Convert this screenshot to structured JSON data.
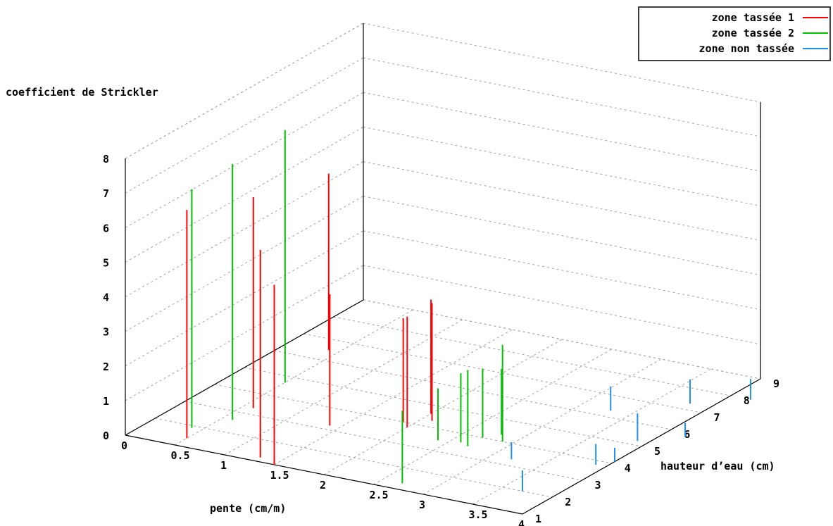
{
  "chart_data": {
    "type": "3d-impulse",
    "title": "",
    "xlabel": "pente (cm/m)",
    "ylabel": "hauteur d’eau (cm)",
    "zlabel": "coefficient de Strickler",
    "xlim": [
      0,
      4
    ],
    "ylim": [
      1,
      9
    ],
    "zlim": [
      0,
      8
    ],
    "x_ticks": [
      "0",
      "0.5",
      "1",
      "1.5",
      "2",
      "2.5",
      "3",
      "3.5",
      "4"
    ],
    "y_ticks": [
      "1",
      "2",
      "3",
      "4",
      "5",
      "6",
      "7",
      "8",
      "9"
    ],
    "z_ticks": [
      "0",
      "1",
      "2",
      "3",
      "4",
      "5",
      "6",
      "7",
      "8"
    ],
    "grid": true,
    "legend_position": "top-right",
    "series": [
      {
        "name": "zone tassée 1",
        "color": "#ff0000",
        "points": [
          {
            "x": 0.5,
            "y": 1.4,
            "z": 6.6
          },
          {
            "x": 0.6,
            "y": 3.3,
            "z": 6.1
          },
          {
            "x": 1.3,
            "y": 1.2,
            "z": 6.0
          },
          {
            "x": 0.4,
            "y": 6.5,
            "z": 5.1
          },
          {
            "x": 1.4,
            "y": 3.2,
            "z": 3.8
          },
          {
            "x": 1.5,
            "y": 1.0,
            "z": 5.2
          },
          {
            "x": 1.9,
            "y": 4.0,
            "z": 3.0
          },
          {
            "x": 2.0,
            "y": 3.8,
            "z": 3.2
          },
          {
            "x": 2.0,
            "y": 4.6,
            "z": 3.3
          },
          {
            "x": 2.1,
            "y": 4.3,
            "z": 3.4
          }
        ]
      },
      {
        "name": "zone tassée 2",
        "color": "#00c000",
        "points": [
          {
            "x": 0.4,
            "y": 1.9,
            "z": 6.9
          },
          {
            "x": 0.6,
            "y": 2.6,
            "z": 7.4
          },
          {
            "x": 0.5,
            "y": 4.7,
            "z": 7.3
          },
          {
            "x": 2.7,
            "y": 1.3,
            "z": 2.1
          },
          {
            "x": 2.4,
            "y": 3.5,
            "z": 1.5
          },
          {
            "x": 2.6,
            "y": 3.6,
            "z": 2.0
          },
          {
            "x": 2.7,
            "y": 3.5,
            "z": 2.2
          },
          {
            "x": 2.7,
            "y": 4.0,
            "z": 2.0
          },
          {
            "x": 2.8,
            "y": 4.3,
            "z": 1.9
          },
          {
            "x": 2.9,
            "y": 4.0,
            "z": 2.8
          }
        ]
      },
      {
        "name": "zone non tassée",
        "color": "#2090f0",
        "points": [
          {
            "x": 3.7,
            "y": 2.0,
            "z": 0.6
          },
          {
            "x": 3.2,
            "y": 3.3,
            "z": 0.5
          },
          {
            "x": 3.9,
            "y": 3.8,
            "z": 0.6
          },
          {
            "x": 4.0,
            "y": 4.1,
            "z": 0.4
          },
          {
            "x": 3.3,
            "y": 6.3,
            "z": 0.7
          },
          {
            "x": 3.9,
            "y": 5.2,
            "z": 0.8
          },
          {
            "x": 3.8,
            "y": 7.3,
            "z": 0.7
          },
          {
            "x": 4.2,
            "y": 5.8,
            "z": 0.4
          },
          {
            "x": 4.2,
            "y": 8.0,
            "z": 0.6
          }
        ]
      }
    ]
  }
}
